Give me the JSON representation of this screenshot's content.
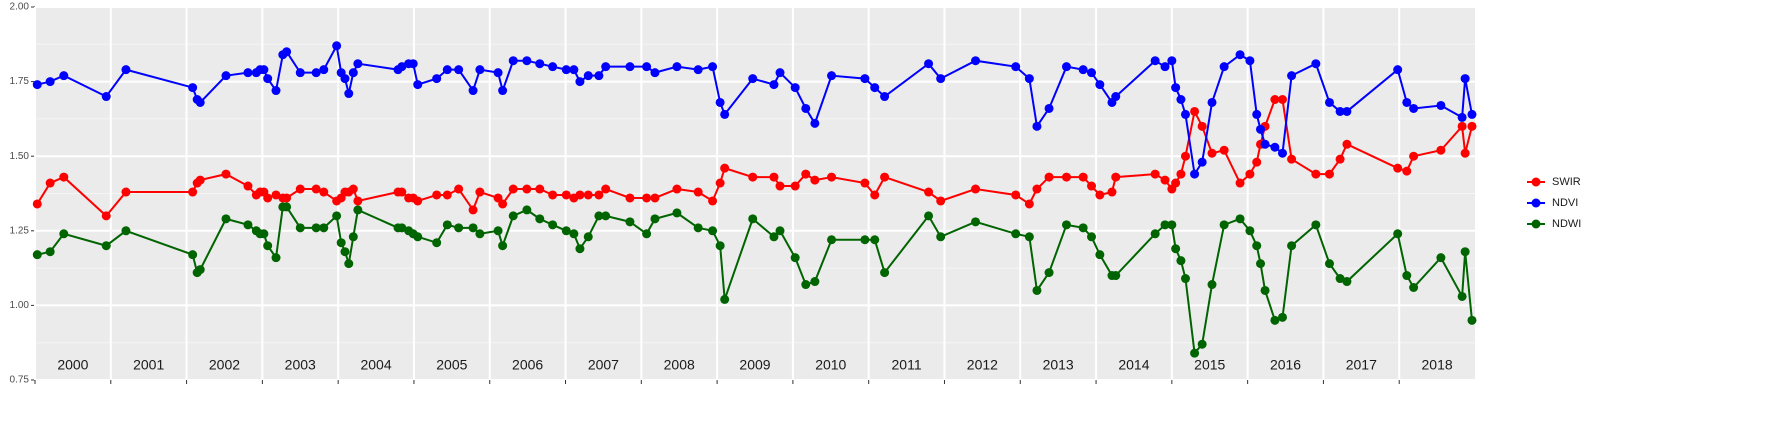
{
  "chart_data": {
    "type": "line",
    "x": [
      2000.03,
      2000.2,
      2000.38,
      2000.94,
      2001.2,
      2002.08,
      2002.14,
      2002.18,
      2002.52,
      2002.81,
      2002.92,
      2002.97,
      2003.02,
      2003.07,
      2003.18,
      2003.27,
      2003.32,
      2003.5,
      2003.71,
      2003.81,
      2003.98,
      2004.04,
      2004.09,
      2004.14,
      2004.2,
      2004.26,
      2004.79,
      2004.84,
      2004.93,
      2004.99,
      2005.05,
      2005.3,
      2005.44,
      2005.59,
      2005.78,
      2005.87,
      2006.11,
      2006.17,
      2006.31,
      2006.49,
      2006.66,
      2006.83,
      2007.01,
      2007.11,
      2007.19,
      2007.3,
      2007.44,
      2007.53,
      2007.85,
      2008.07,
      2008.18,
      2008.47,
      2008.75,
      2008.94,
      2009.04,
      2009.1,
      2009.47,
      2009.75,
      2009.83,
      2010.03,
      2010.17,
      2010.29,
      2010.51,
      2010.95,
      2011.08,
      2011.21,
      2011.79,
      2011.95,
      2012.41,
      2012.94,
      2013.12,
      2013.22,
      2013.38,
      2013.61,
      2013.83,
      2013.94,
      2014.05,
      2014.21,
      2014.26,
      2014.78,
      2014.91,
      2015.0,
      2015.05,
      2015.12,
      2015.18,
      2015.3,
      2015.4,
      2015.53,
      2015.69,
      2015.9,
      2016.03,
      2016.12,
      2016.17,
      2016.23,
      2016.36,
      2016.46,
      2016.58,
      2016.9,
      2017.08,
      2017.22,
      2017.31,
      2017.98,
      2018.1,
      2018.19,
      2018.55,
      2018.83,
      2018.87,
      2018.96
    ],
    "series": [
      {
        "name": "SWIR",
        "color": "#ff0000",
        "values": [
          1.34,
          1.41,
          1.43,
          1.3,
          1.38,
          1.38,
          1.41,
          1.42,
          1.44,
          1.4,
          1.37,
          1.38,
          1.38,
          1.36,
          1.37,
          1.36,
          1.36,
          1.39,
          1.39,
          1.38,
          1.35,
          1.36,
          1.38,
          1.38,
          1.39,
          1.35,
          1.38,
          1.38,
          1.36,
          1.36,
          1.35,
          1.37,
          1.37,
          1.39,
          1.32,
          1.38,
          1.36,
          1.34,
          1.39,
          1.39,
          1.39,
          1.37,
          1.37,
          1.36,
          1.37,
          1.37,
          1.37,
          1.39,
          1.36,
          1.36,
          1.36,
          1.39,
          1.38,
          1.35,
          1.41,
          1.46,
          1.43,
          1.43,
          1.4,
          1.4,
          1.44,
          1.42,
          1.43,
          1.41,
          1.37,
          1.43,
          1.38,
          1.35,
          1.39,
          1.37,
          1.34,
          1.39,
          1.43,
          1.43,
          1.43,
          1.4,
          1.37,
          1.38,
          1.43,
          1.44,
          1.42,
          1.39,
          1.41,
          1.44,
          1.5,
          1.65,
          1.6,
          1.51,
          1.52,
          1.41,
          1.44,
          1.48,
          1.54,
          1.6,
          1.69,
          1.69,
          1.49,
          1.44,
          1.44,
          1.49,
          1.54,
          1.46,
          1.45,
          1.5,
          1.52,
          1.6,
          1.51,
          1.6
        ]
      },
      {
        "name": "NDVI",
        "color": "#0000ff",
        "values": [
          1.74,
          1.75,
          1.77,
          1.7,
          1.79,
          1.73,
          1.69,
          1.68,
          1.77,
          1.78,
          1.78,
          1.79,
          1.79,
          1.76,
          1.72,
          1.84,
          1.85,
          1.78,
          1.78,
          1.79,
          1.87,
          1.78,
          1.76,
          1.71,
          1.78,
          1.81,
          1.79,
          1.8,
          1.81,
          1.81,
          1.74,
          1.76,
          1.79,
          1.79,
          1.72,
          1.79,
          1.78,
          1.72,
          1.82,
          1.82,
          1.81,
          1.8,
          1.79,
          1.79,
          1.75,
          1.77,
          1.77,
          1.8,
          1.8,
          1.8,
          1.78,
          1.8,
          1.79,
          1.8,
          1.68,
          1.64,
          1.76,
          1.74,
          1.78,
          1.73,
          1.66,
          1.61,
          1.77,
          1.76,
          1.73,
          1.7,
          1.81,
          1.76,
          1.82,
          1.8,
          1.76,
          1.6,
          1.66,
          1.8,
          1.79,
          1.78,
          1.74,
          1.68,
          1.7,
          1.82,
          1.8,
          1.82,
          1.73,
          1.69,
          1.64,
          1.44,
          1.48,
          1.68,
          1.8,
          1.84,
          1.82,
          1.64,
          1.59,
          1.54,
          1.53,
          1.51,
          1.77,
          1.81,
          1.68,
          1.65,
          1.65,
          1.79,
          1.68,
          1.66,
          1.67,
          1.63,
          1.76,
          1.64
        ]
      },
      {
        "name": "NDWI",
        "color": "#006400",
        "values": [
          1.17,
          1.18,
          1.24,
          1.2,
          1.25,
          1.17,
          1.11,
          1.12,
          1.29,
          1.27,
          1.25,
          1.24,
          1.24,
          1.2,
          1.16,
          1.33,
          1.33,
          1.26,
          1.26,
          1.26,
          1.3,
          1.21,
          1.18,
          1.14,
          1.23,
          1.32,
          1.26,
          1.26,
          1.25,
          1.24,
          1.23,
          1.21,
          1.27,
          1.26,
          1.26,
          1.24,
          1.25,
          1.2,
          1.3,
          1.32,
          1.29,
          1.27,
          1.25,
          1.24,
          1.19,
          1.23,
          1.3,
          1.3,
          1.28,
          1.24,
          1.29,
          1.31,
          1.26,
          1.25,
          1.2,
          1.02,
          1.29,
          1.23,
          1.25,
          1.16,
          1.07,
          1.08,
          1.22,
          1.22,
          1.22,
          1.11,
          1.3,
          1.23,
          1.28,
          1.24,
          1.23,
          1.05,
          1.11,
          1.27,
          1.26,
          1.23,
          1.17,
          1.1,
          1.1,
          1.24,
          1.27,
          1.27,
          1.19,
          1.15,
          1.09,
          0.84,
          0.87,
          1.07,
          1.27,
          1.29,
          1.25,
          1.2,
          1.14,
          1.05,
          0.95,
          0.96,
          1.2,
          1.27,
          1.14,
          1.09,
          1.08,
          1.24,
          1.1,
          1.06,
          1.16,
          1.03,
          1.18,
          0.95
        ]
      }
    ],
    "xlim": [
      2000,
      2019
    ],
    "xticks": [
      2000,
      2001,
      2002,
      2003,
      2004,
      2005,
      2006,
      2007,
      2008,
      2009,
      2010,
      2011,
      2012,
      2013,
      2014,
      2015,
      2016,
      2017,
      2018
    ],
    "ylim": [
      0.75,
      2.0
    ],
    "yticks": [
      {
        "value": 0.75,
        "label": "0.75"
      },
      {
        "value": 1.0,
        "label": "1.00"
      },
      {
        "value": 1.25,
        "label": "1.25"
      },
      {
        "value": 1.5,
        "label": "1.50"
      },
      {
        "value": 1.75,
        "label": "1.75"
      },
      {
        "value": 2.0,
        "label": "2.00"
      }
    ],
    "grid": true,
    "legend": "right"
  }
}
